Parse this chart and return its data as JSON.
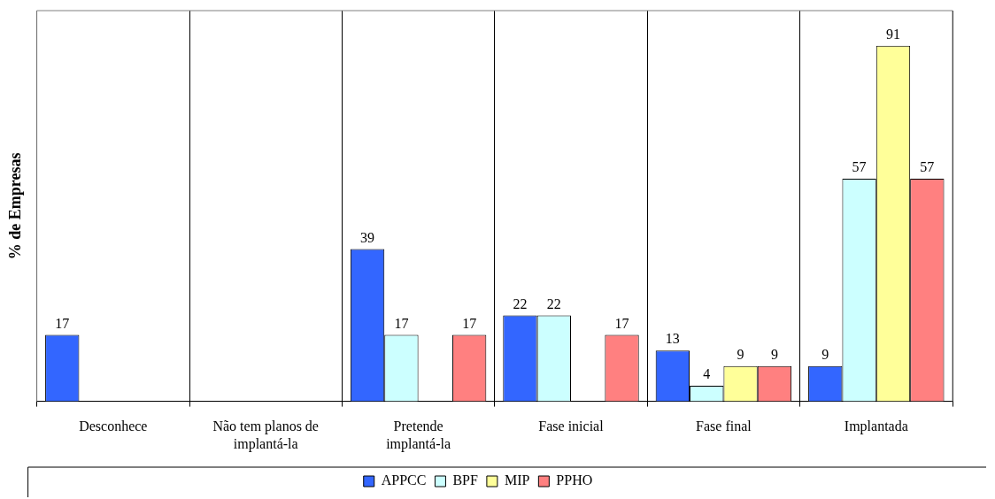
{
  "chart_data": {
    "type": "bar",
    "ylabel": "% de Empresas",
    "categories": [
      "Desconhece",
      "Não tem planos de implantá-la",
      "Pretende implantá-la",
      "Fase inicial",
      "Fase final",
      "Implantada"
    ],
    "series": [
      {
        "name": "APPCC",
        "color": "#3366ff",
        "values": [
          17,
          null,
          39,
          22,
          13,
          9
        ]
      },
      {
        "name": "BPF",
        "color": "#ccffff",
        "values": [
          null,
          null,
          17,
          22,
          4,
          57
        ]
      },
      {
        "name": "MIP",
        "color": "#ffff99",
        "values": [
          null,
          null,
          null,
          null,
          9,
          91
        ]
      },
      {
        "name": "PPHO",
        "color": "#ff8080",
        "values": [
          null,
          null,
          17,
          17,
          9,
          57
        ]
      }
    ],
    "ylim": [
      0,
      100
    ],
    "grid": "x",
    "legend": "bottom",
    "data_labels": true
  }
}
